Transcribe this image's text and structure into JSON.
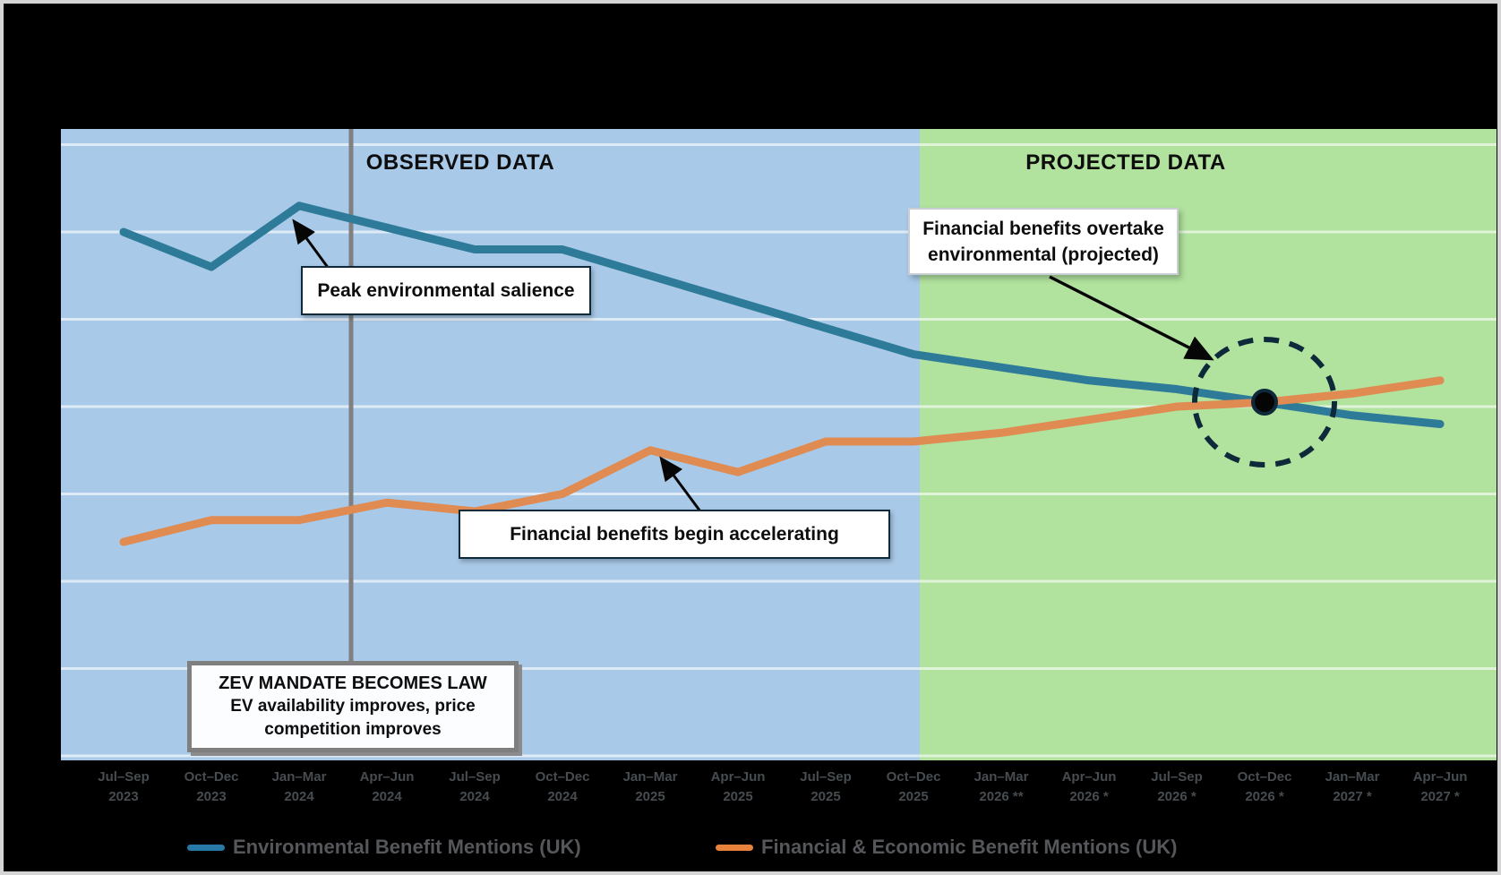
{
  "frame": {
    "background": "#000000",
    "border_color": "#D5D5D5"
  },
  "regions": {
    "observed_label": "OBSERVED DATA",
    "projected_label": "PROJECTED DATA",
    "observed_bg": "#A9C9E8",
    "projected_bg": "#B1E29E"
  },
  "annotations": {
    "peak": {
      "text": "Peak environmental salience"
    },
    "accelerate": {
      "text": "Financial benefits begin accelerating"
    },
    "overtake": {
      "line1": "Financial benefits overtake",
      "line2": "environmental (projected)"
    },
    "zev": {
      "line1": "ZEV MANDATE BECOMES LAW",
      "line2": "EV availability improves, price",
      "line3": "competition improves"
    }
  },
  "legend": {
    "items": [
      {
        "label": "Environmental Benefit Mentions (UK)",
        "color": "#2779A8"
      },
      {
        "label": "Financial & Economic Benefit Mentions (UK)",
        "color": "#E8823C"
      }
    ]
  },
  "chart_data": {
    "type": "line",
    "title": "",
    "categories": [
      {
        "line1": "Jul–Sep",
        "line2": "2023"
      },
      {
        "line1": "Oct–Dec",
        "line2": "2023"
      },
      {
        "line1": "Jan–Mar",
        "line2": "2024"
      },
      {
        "line1": "Apr–Jun",
        "line2": "2024"
      },
      {
        "line1": "Jul–Sep",
        "line2": "2024"
      },
      {
        "line1": "Oct–Dec",
        "line2": "2024"
      },
      {
        "line1": "Jan–Mar",
        "line2": "2025"
      },
      {
        "line1": "Apr–Jun",
        "line2": "2025"
      },
      {
        "line1": "Jul–Sep",
        "line2": "2025"
      },
      {
        "line1": "Oct–Dec",
        "line2": "2025"
      },
      {
        "line1": "Jan–Mar",
        "line2": "2026 **"
      },
      {
        "line1": "Apr–Jun",
        "line2": "2026 *"
      },
      {
        "line1": "Jul–Sep",
        "line2": "2026 *"
      },
      {
        "line1": "Oct–Dec",
        "line2": "2026 *"
      },
      {
        "line1": "Jan–Mar",
        "line2": "2027 *"
      },
      {
        "line1": "Apr–Jun",
        "line2": "2027 *"
      }
    ],
    "series": [
      {
        "name": "Environmental Benefit Mentions (UK)",
        "color": "#2E7B99",
        "values": [
          70,
          66,
          73,
          70.5,
          68,
          68,
          65,
          62,
          59,
          56,
          54.5,
          53,
          52,
          50.5,
          49,
          48
        ]
      },
      {
        "name": "Financial & Economic Benefit Mentions (UK)",
        "color": "#DF8B51",
        "values": [
          34.5,
          37,
          37,
          39,
          38,
          40,
          45,
          42.5,
          46,
          46,
          47,
          48.5,
          50,
          50.5,
          51.5,
          53
        ]
      }
    ],
    "xlabel": "",
    "ylabel": "",
    "ylim": [
      10,
      81.8
    ],
    "gridlines": [
      10,
      20,
      30,
      40,
      50,
      60,
      70,
      80
    ],
    "y_tick_labels_visible": false,
    "grid_color": "rgba(255,255,255,0.62)",
    "observed_region_last_category": "Oct–Dec 2025",
    "split_x_fraction": 0.598,
    "crossover": {
      "category_index": 13,
      "value": 50.5
    },
    "zev_line_between": [
      "Jan–Mar 2024",
      "Apr–Jun 2024"
    ],
    "legend_position": "bottom"
  }
}
